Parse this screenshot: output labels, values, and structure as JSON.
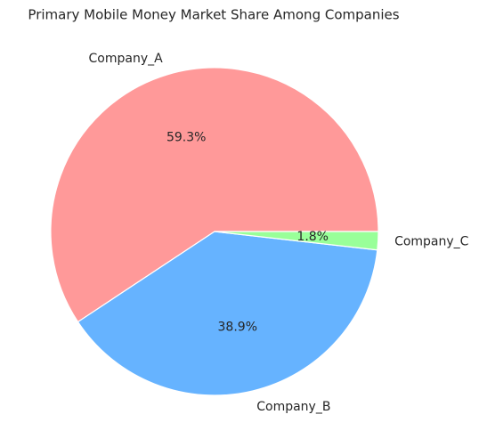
{
  "chart_data": {
    "type": "pie",
    "title": "Primary Mobile Money Market Share Among Companies",
    "categories": [
      "Company_A",
      "Company_B",
      "Company_C"
    ],
    "values": [
      59.3,
      38.9,
      1.8
    ],
    "value_labels": [
      "59.3%",
      "38.9%",
      "1.8%"
    ],
    "colors": [
      "#ff9999",
      "#66b3ff",
      "#99ff99"
    ]
  }
}
